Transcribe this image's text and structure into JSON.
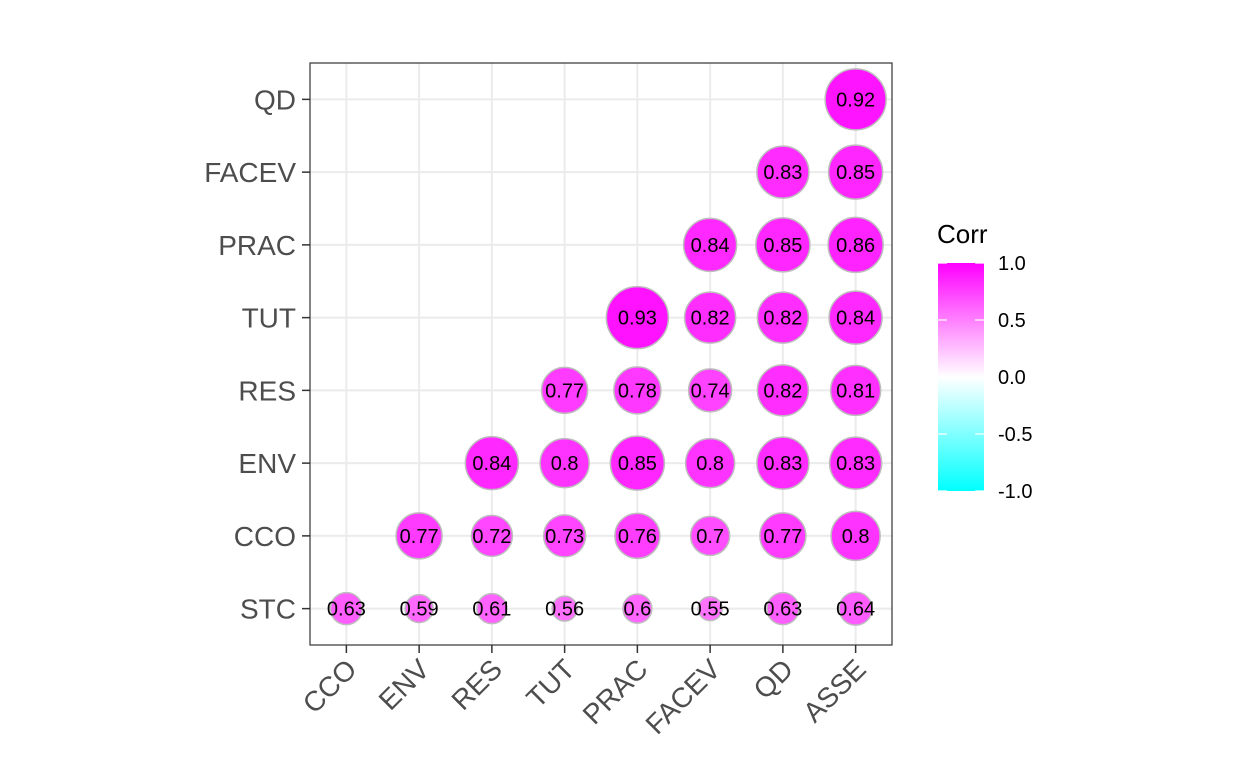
{
  "chart_data": {
    "type": "heatmap",
    "style": "correlogram-circles",
    "x_categories": [
      "CCO",
      "ENV",
      "RES",
      "TUT",
      "PRAC",
      "FACEV",
      "QD",
      "ASSE"
    ],
    "y_categories": [
      "STC",
      "CCO",
      "ENV",
      "RES",
      "TUT",
      "PRAC",
      "FACEV",
      "QD"
    ],
    "cells": [
      {
        "x": "CCO",
        "y": "STC",
        "value": 0.63,
        "label": "0.63"
      },
      {
        "x": "ENV",
        "y": "STC",
        "value": 0.59,
        "label": "0.59"
      },
      {
        "x": "RES",
        "y": "STC",
        "value": 0.61,
        "label": "0.61"
      },
      {
        "x": "TUT",
        "y": "STC",
        "value": 0.56,
        "label": "0.56"
      },
      {
        "x": "PRAC",
        "y": "STC",
        "value": 0.6,
        "label": "0.6"
      },
      {
        "x": "FACEV",
        "y": "STC",
        "value": 0.55,
        "label": "0.55"
      },
      {
        "x": "QD",
        "y": "STC",
        "value": 0.63,
        "label": "0.63"
      },
      {
        "x": "ASSE",
        "y": "STC",
        "value": 0.64,
        "label": "0.64"
      },
      {
        "x": "ENV",
        "y": "CCO",
        "value": 0.77,
        "label": "0.77"
      },
      {
        "x": "RES",
        "y": "CCO",
        "value": 0.72,
        "label": "0.72"
      },
      {
        "x": "TUT",
        "y": "CCO",
        "value": 0.73,
        "label": "0.73"
      },
      {
        "x": "PRAC",
        "y": "CCO",
        "value": 0.76,
        "label": "0.76"
      },
      {
        "x": "FACEV",
        "y": "CCO",
        "value": 0.7,
        "label": "0.7"
      },
      {
        "x": "QD",
        "y": "CCO",
        "value": 0.77,
        "label": "0.77"
      },
      {
        "x": "ASSE",
        "y": "CCO",
        "value": 0.8,
        "label": "0.8"
      },
      {
        "x": "RES",
        "y": "ENV",
        "value": 0.84,
        "label": "0.84"
      },
      {
        "x": "TUT",
        "y": "ENV",
        "value": 0.8,
        "label": "0.8"
      },
      {
        "x": "PRAC",
        "y": "ENV",
        "value": 0.85,
        "label": "0.85"
      },
      {
        "x": "FACEV",
        "y": "ENV",
        "value": 0.8,
        "label": "0.8"
      },
      {
        "x": "QD",
        "y": "ENV",
        "value": 0.83,
        "label": "0.83"
      },
      {
        "x": "ASSE",
        "y": "ENV",
        "value": 0.83,
        "label": "0.83"
      },
      {
        "x": "TUT",
        "y": "RES",
        "value": 0.77,
        "label": "0.77"
      },
      {
        "x": "PRAC",
        "y": "RES",
        "value": 0.78,
        "label": "0.78"
      },
      {
        "x": "FACEV",
        "y": "RES",
        "value": 0.74,
        "label": "0.74"
      },
      {
        "x": "QD",
        "y": "RES",
        "value": 0.82,
        "label": "0.82"
      },
      {
        "x": "ASSE",
        "y": "RES",
        "value": 0.81,
        "label": "0.81"
      },
      {
        "x": "PRAC",
        "y": "TUT",
        "value": 0.93,
        "label": "0.93"
      },
      {
        "x": "FACEV",
        "y": "TUT",
        "value": 0.82,
        "label": "0.82"
      },
      {
        "x": "QD",
        "y": "TUT",
        "value": 0.82,
        "label": "0.82"
      },
      {
        "x": "ASSE",
        "y": "TUT",
        "value": 0.84,
        "label": "0.84"
      },
      {
        "x": "FACEV",
        "y": "PRAC",
        "value": 0.84,
        "label": "0.84"
      },
      {
        "x": "QD",
        "y": "PRAC",
        "value": 0.85,
        "label": "0.85"
      },
      {
        "x": "ASSE",
        "y": "PRAC",
        "value": 0.86,
        "label": "0.86"
      },
      {
        "x": "QD",
        "y": "FACEV",
        "value": 0.83,
        "label": "0.83"
      },
      {
        "x": "ASSE",
        "y": "FACEV",
        "value": 0.85,
        "label": "0.85"
      },
      {
        "x": "ASSE",
        "y": "QD",
        "value": 0.92,
        "label": "0.92"
      }
    ],
    "legend": {
      "title": "Corr",
      "position": "right",
      "range": [
        -1.0,
        1.0
      ],
      "ticks": [
        1.0,
        0.5,
        0.0,
        -0.5,
        -1.0
      ],
      "tick_labels": [
        "1.0",
        "0.5",
        "0.0",
        "-0.5",
        "-1.0"
      ],
      "colors": {
        "low": "#00FFFF",
        "mid": "#FFFFFF",
        "high": "#FF00FF"
      }
    },
    "grid": true,
    "x_tick_rotation_deg": 45,
    "title": "",
    "xlabel": "",
    "ylabel": ""
  }
}
